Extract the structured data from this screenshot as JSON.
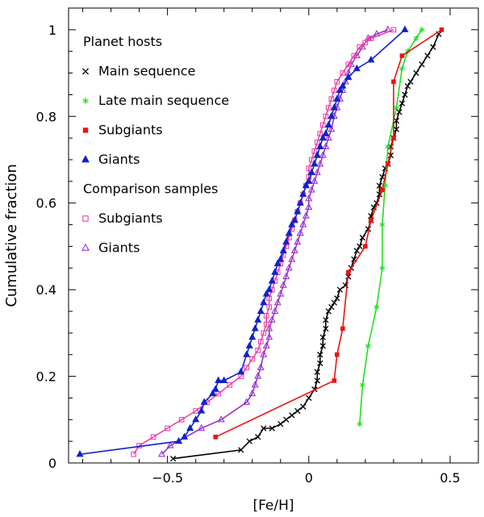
{
  "chart_data": {
    "type": "line",
    "xlabel": "[Fe/H]",
    "ylabel": "Cumulative fraction",
    "xlim": [
      -0.85,
      0.6
    ],
    "ylim": [
      0,
      1.05
    ],
    "x_ticks": [
      -0.5,
      0,
      0.5
    ],
    "x_tick_labels": [
      "−0.5",
      "0",
      "0.5"
    ],
    "y_ticks": [
      0,
      0.2,
      0.4,
      0.6,
      0.8,
      1
    ],
    "y_tick_labels": [
      "0",
      "0.2",
      "0.4",
      "0.6",
      "0.8",
      "1"
    ],
    "legend": {
      "position": "top-left",
      "group_titles": [
        "Planet hosts",
        "Comparison samples"
      ]
    },
    "series": [
      {
        "name": "Main sequence",
        "group": "Planet hosts",
        "color": "#000000",
        "marker": "x",
        "x": [
          -0.48,
          -0.24,
          -0.21,
          -0.18,
          -0.16,
          -0.13,
          -0.1,
          -0.08,
          -0.06,
          -0.04,
          -0.02,
          0.0,
          0.02,
          0.03,
          0.03,
          0.04,
          0.04,
          0.05,
          0.05,
          0.06,
          0.06,
          0.07,
          0.08,
          0.09,
          0.1,
          0.11,
          0.13,
          0.14,
          0.15,
          0.16,
          0.17,
          0.18,
          0.19,
          0.21,
          0.22,
          0.22,
          0.23,
          0.24,
          0.25,
          0.25,
          0.26,
          0.27,
          0.28,
          0.29,
          0.29,
          0.3,
          0.31,
          0.31,
          0.32,
          0.33,
          0.34,
          0.35,
          0.36,
          0.38,
          0.4,
          0.42,
          0.44,
          0.46
        ],
        "y": [
          0.01,
          0.03,
          0.05,
          0.06,
          0.08,
          0.08,
          0.09,
          0.1,
          0.11,
          0.12,
          0.13,
          0.15,
          0.17,
          0.19,
          0.21,
          0.23,
          0.25,
          0.27,
          0.29,
          0.31,
          0.33,
          0.35,
          0.36,
          0.37,
          0.38,
          0.4,
          0.41,
          0.43,
          0.45,
          0.47,
          0.49,
          0.5,
          0.52,
          0.54,
          0.56,
          0.57,
          0.59,
          0.6,
          0.62,
          0.64,
          0.66,
          0.68,
          0.69,
          0.71,
          0.73,
          0.75,
          0.77,
          0.79,
          0.81,
          0.83,
          0.85,
          0.87,
          0.88,
          0.9,
          0.92,
          0.94,
          0.96,
          0.99
        ]
      },
      {
        "name": "Late main sequence",
        "group": "Planet hosts",
        "color": "#22dd22",
        "marker": "*",
        "x": [
          0.18,
          0.19,
          0.21,
          0.24,
          0.26,
          0.26,
          0.27,
          0.28,
          0.31,
          0.33,
          0.35,
          0.38,
          0.4
        ],
        "y": [
          0.09,
          0.18,
          0.27,
          0.36,
          0.45,
          0.55,
          0.64,
          0.73,
          0.82,
          0.91,
          0.95,
          0.98,
          1.0
        ]
      },
      {
        "name": "Subgiants",
        "group": "Planet hosts",
        "color": "#ee1111",
        "marker": "filled-square",
        "x": [
          -0.33,
          0.09,
          0.1,
          0.12,
          0.14,
          0.2,
          0.22,
          0.26,
          0.28,
          0.3,
          0.3,
          0.33,
          0.47
        ],
        "y": [
          0.06,
          0.19,
          0.25,
          0.31,
          0.44,
          0.5,
          0.56,
          0.63,
          0.69,
          0.75,
          0.88,
          0.94,
          1.0
        ]
      },
      {
        "name": "Giants",
        "group": "Planet hosts",
        "color": "#1122cc",
        "marker": "filled-triangle",
        "x": [
          -0.81,
          -0.46,
          -0.44,
          -0.42,
          -0.4,
          -0.38,
          -0.37,
          -0.34,
          -0.33,
          -0.32,
          -0.3,
          -0.24,
          -0.22,
          -0.21,
          -0.2,
          -0.19,
          -0.18,
          -0.17,
          -0.16,
          -0.15,
          -0.14,
          -0.13,
          -0.12,
          -0.11,
          -0.1,
          -0.09,
          -0.08,
          -0.07,
          -0.06,
          -0.05,
          -0.04,
          -0.03,
          -0.02,
          -0.01,
          0.0,
          0.01,
          0.02,
          0.03,
          0.04,
          0.05,
          0.06,
          0.07,
          0.08,
          0.09,
          0.1,
          0.11,
          0.12,
          0.14,
          0.17,
          0.22,
          0.34
        ],
        "y": [
          0.02,
          0.05,
          0.06,
          0.08,
          0.1,
          0.12,
          0.14,
          0.16,
          0.17,
          0.19,
          0.19,
          0.21,
          0.25,
          0.27,
          0.29,
          0.31,
          0.33,
          0.35,
          0.37,
          0.39,
          0.4,
          0.42,
          0.44,
          0.46,
          0.47,
          0.49,
          0.51,
          0.53,
          0.55,
          0.56,
          0.58,
          0.6,
          0.62,
          0.64,
          0.65,
          0.67,
          0.69,
          0.71,
          0.73,
          0.75,
          0.76,
          0.78,
          0.8,
          0.82,
          0.84,
          0.86,
          0.87,
          0.89,
          0.91,
          0.93,
          1.0
        ]
      },
      {
        "name": "Subgiants",
        "group": "Comparison samples",
        "color": "#ee44aa",
        "marker": "open-square",
        "x": [
          -0.62,
          -0.6,
          -0.55,
          -0.5,
          -0.45,
          -0.4,
          -0.36,
          -0.32,
          -0.28,
          -0.24,
          -0.22,
          -0.2,
          -0.18,
          -0.17,
          -0.16,
          -0.15,
          -0.15,
          -0.14,
          -0.14,
          -0.13,
          -0.12,
          -0.11,
          -0.1,
          -0.09,
          -0.08,
          -0.07,
          -0.06,
          -0.05,
          -0.04,
          -0.03,
          -0.02,
          -0.01,
          0.0,
          0.0,
          0.01,
          0.02,
          0.03,
          0.04,
          0.05,
          0.06,
          0.07,
          0.08,
          0.09,
          0.1,
          0.12,
          0.14,
          0.16,
          0.18,
          0.2,
          0.22,
          0.3
        ],
        "y": [
          0.02,
          0.04,
          0.06,
          0.08,
          0.1,
          0.12,
          0.14,
          0.16,
          0.18,
          0.2,
          0.22,
          0.24,
          0.26,
          0.28,
          0.3,
          0.32,
          0.34,
          0.36,
          0.38,
          0.4,
          0.42,
          0.44,
          0.46,
          0.48,
          0.5,
          0.52,
          0.54,
          0.56,
          0.58,
          0.6,
          0.62,
          0.64,
          0.66,
          0.68,
          0.7,
          0.72,
          0.74,
          0.76,
          0.78,
          0.8,
          0.82,
          0.84,
          0.86,
          0.88,
          0.9,
          0.92,
          0.94,
          0.96,
          0.97,
          0.98,
          1.0
        ]
      },
      {
        "name": "Giants",
        "group": "Comparison samples",
        "color": "#9933cc",
        "marker": "open-triangle",
        "x": [
          -0.52,
          -0.49,
          -0.38,
          -0.31,
          -0.22,
          -0.2,
          -0.19,
          -0.18,
          -0.17,
          -0.16,
          -0.15,
          -0.14,
          -0.14,
          -0.13,
          -0.12,
          -0.11,
          -0.1,
          -0.09,
          -0.08,
          -0.07,
          -0.06,
          -0.05,
          -0.04,
          -0.03,
          -0.02,
          -0.01,
          0.0,
          0.0,
          0.01,
          0.02,
          0.03,
          0.04,
          0.05,
          0.06,
          0.07,
          0.08,
          0.09,
          0.1,
          0.11,
          0.12,
          0.13,
          0.14,
          0.15,
          0.17,
          0.19,
          0.21,
          0.24,
          0.28
        ],
        "y": [
          0.02,
          0.04,
          0.08,
          0.1,
          0.14,
          0.16,
          0.18,
          0.2,
          0.22,
          0.25,
          0.27,
          0.29,
          0.31,
          0.33,
          0.35,
          0.37,
          0.39,
          0.41,
          0.43,
          0.45,
          0.47,
          0.49,
          0.51,
          0.53,
          0.55,
          0.57,
          0.59,
          0.61,
          0.63,
          0.65,
          0.67,
          0.69,
          0.71,
          0.73,
          0.75,
          0.77,
          0.8,
          0.82,
          0.84,
          0.86,
          0.88,
          0.9,
          0.92,
          0.94,
          0.96,
          0.98,
          0.99,
          1.0
        ]
      }
    ]
  }
}
